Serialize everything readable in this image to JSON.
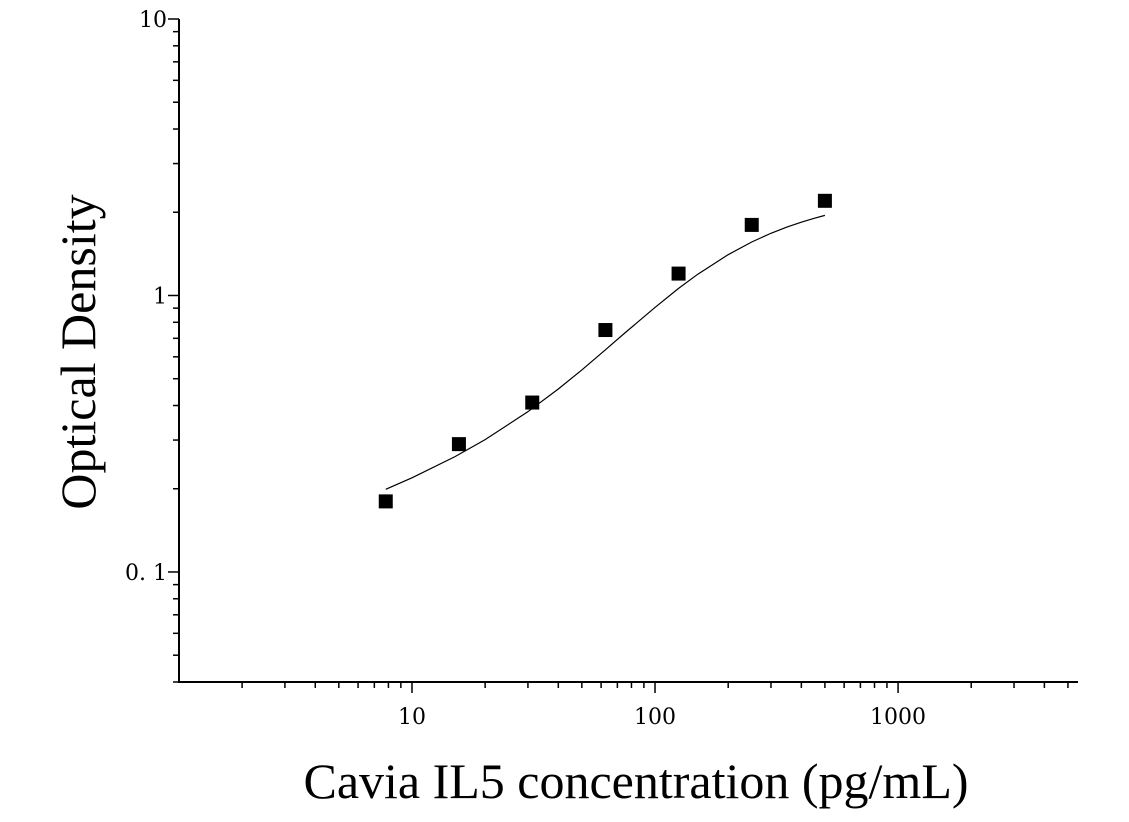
{
  "chart_data": {
    "type": "scatter",
    "xlabel": "Cavia IL5 concentration (pg/mL)",
    "ylabel": "Optical Density",
    "x_scale": "log",
    "y_scale": "log",
    "xlim": [
      1.1,
      5500
    ],
    "ylim": [
      0.04,
      10
    ],
    "x_tick_labels": [
      {
        "value": 10,
        "label": "10"
      },
      {
        "value": 100,
        "label": "100"
      },
      {
        "value": 1000,
        "label": "1000"
      }
    ],
    "y_tick_labels": [
      {
        "value": 10,
        "label": "10"
      },
      {
        "value": 1,
        "label": "1"
      },
      {
        "value": 0.1,
        "label": "0. 1"
      }
    ],
    "grid": false,
    "legend": "none",
    "series": [
      {
        "x": [
          7.8,
          15.6,
          31.25,
          62.5,
          125,
          250,
          500
        ],
        "y": [
          0.18,
          0.29,
          0.41,
          0.75,
          1.2,
          1.8,
          2.2
        ]
      }
    ],
    "fit_curve": [
      [
        7.8,
        0.199
      ],
      [
        10,
        0.219
      ],
      [
        15,
        0.261
      ],
      [
        20,
        0.301
      ],
      [
        30,
        0.38
      ],
      [
        40,
        0.459
      ],
      [
        50,
        0.538
      ],
      [
        62.5,
        0.636
      ],
      [
        75,
        0.731
      ],
      [
        100,
        0.905
      ],
      [
        125,
        1.061
      ],
      [
        150,
        1.194
      ],
      [
        200,
        1.405
      ],
      [
        250,
        1.561
      ],
      [
        300,
        1.679
      ],
      [
        350,
        1.77
      ],
      [
        400,
        1.842
      ],
      [
        450,
        1.9
      ],
      [
        500,
        1.949
      ]
    ],
    "point_color": "#000000"
  }
}
